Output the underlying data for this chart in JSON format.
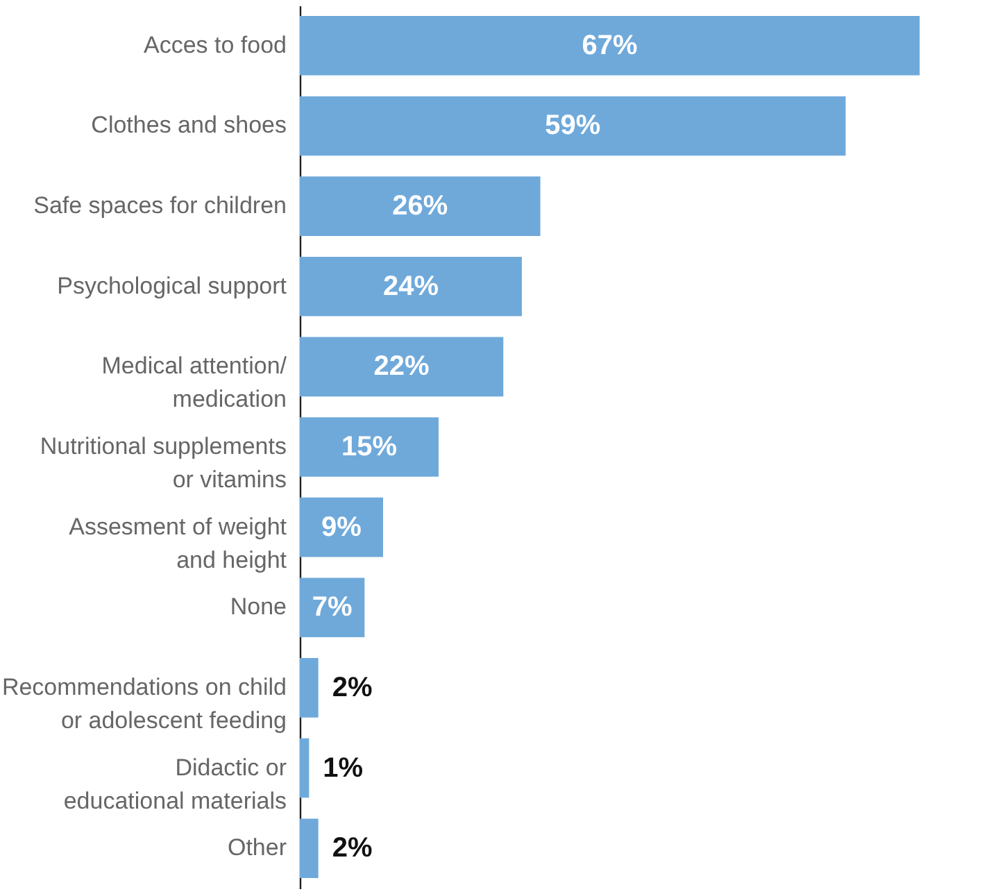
{
  "chart_data": {
    "type": "bar",
    "orientation": "horizontal",
    "categories": [
      "Acces to food",
      "Clothes and shoes",
      "Safe spaces for children",
      "Psychological support",
      "Medical attention/\nmedication",
      "Nutritional supplements\nor vitamins",
      "Assesment of weight\nand height",
      "None",
      "Recommendations on child\nor adolescent feeding",
      "Didactic or\neducational materials",
      "Other"
    ],
    "values": [
      67,
      59,
      26,
      24,
      22,
      15,
      9,
      7,
      2,
      1,
      2
    ],
    "value_labels": [
      "67%",
      "59%",
      "26%",
      "24%",
      "22%",
      "15%",
      "9%",
      "7%",
      "2%",
      "1%",
      "2%"
    ],
    "color": "#6fa9da"
  }
}
